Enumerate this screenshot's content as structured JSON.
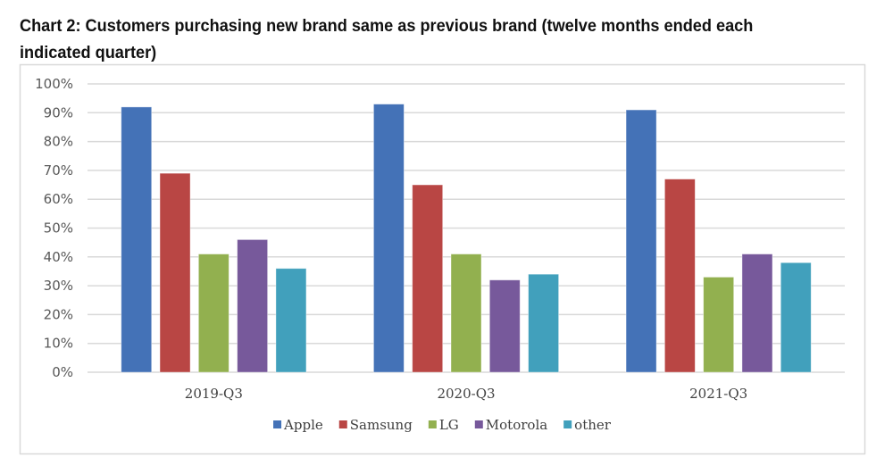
{
  "title": "Chart 2: Customers purchasing new brand same as previous brand (twelve months ended each indicated quarter)",
  "chart_data": {
    "type": "bar",
    "title": "Chart 2: Customers purchasing new brand same as previous brand (twelve months ended each indicated quarter)",
    "xlabel": "",
    "ylabel": "",
    "categories": [
      "2019-Q3",
      "2020-Q3",
      "2021-Q3"
    ],
    "series": [
      {
        "name": "Apple",
        "color": "#4472b7",
        "values": [
          92,
          93,
          91
        ]
      },
      {
        "name": "Samsung",
        "color": "#b94644",
        "values": [
          69,
          65,
          67
        ]
      },
      {
        "name": "LG",
        "color": "#92b04f",
        "values": [
          41,
          41,
          33
        ]
      },
      {
        "name": "Motorola",
        "color": "#77599b",
        "values": [
          46,
          32,
          41
        ]
      },
      {
        "name": "other",
        "color": "#41a0bc",
        "values": [
          36,
          34,
          38
        ]
      }
    ],
    "ylim": [
      0,
      100
    ],
    "yticks": [
      "0%",
      "10%",
      "20%",
      "30%",
      "40%",
      "50%",
      "60%",
      "70%",
      "80%",
      "90%",
      "100%"
    ],
    "grid": true,
    "legend": "bottom-center"
  }
}
